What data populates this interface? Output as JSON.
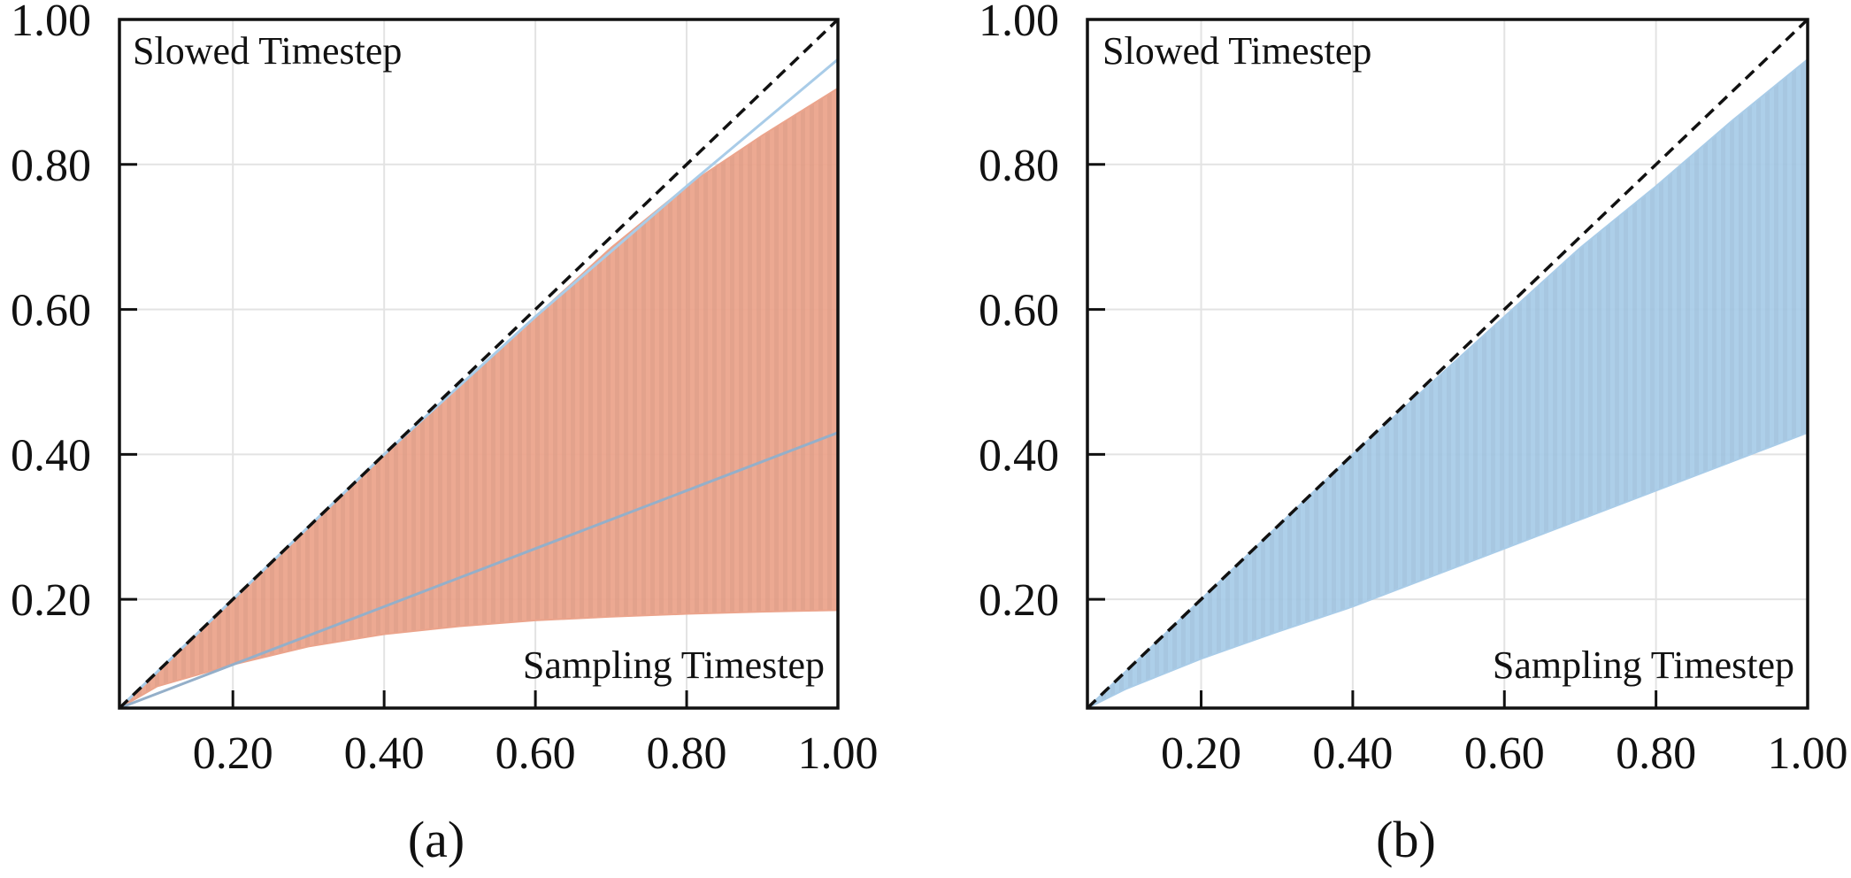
{
  "chart_data": [
    {
      "type": "area",
      "caption": "(a)",
      "xlim": [
        0.05,
        1.0
      ],
      "ylim": [
        0.05,
        1.0
      ],
      "xticks": [
        0.2,
        0.4,
        0.6,
        0.8,
        1.0
      ],
      "yticks": [
        0.2,
        0.4,
        0.6,
        0.8,
        1.0
      ],
      "xtick_labels": [
        "0.20",
        "0.40",
        "0.60",
        "0.80",
        "1.00"
      ],
      "ytick_labels": [
        "0.20",
        "0.40",
        "0.60",
        "0.80",
        "1.00"
      ],
      "grid": true,
      "ylabel": "Slowed Timestep",
      "xlabel": "Sampling Timestep",
      "reference_line": {
        "style": "dashed",
        "color": "#111111",
        "x": [
          0.05,
          1.0
        ],
        "y": [
          0.05,
          1.0
        ]
      },
      "bands": [
        {
          "name": "orange-band",
          "color": "#EBA48C",
          "x": [
            0.05,
            0.1,
            0.2,
            0.3,
            0.4,
            0.5,
            0.6,
            0.7,
            0.8,
            0.9,
            1.0
          ],
          "upper": [
            0.05,
            0.1,
            0.2,
            0.3,
            0.4,
            0.495,
            0.59,
            0.685,
            0.77,
            0.84,
            0.905
          ],
          "lower": [
            0.05,
            0.08,
            0.11,
            0.135,
            0.152,
            0.163,
            0.171,
            0.176,
            0.18,
            0.183,
            0.185
          ]
        }
      ],
      "lines": [
        {
          "name": "blue-upper-line",
          "color": "#A9CCE8",
          "x": [
            0.05,
            0.4,
            0.6,
            0.8,
            1.0
          ],
          "y": [
            0.05,
            0.4,
            0.59,
            0.77,
            0.945
          ]
        },
        {
          "name": "blue-lower-line",
          "color": "#94AFC9",
          "x": [
            0.05,
            0.4,
            0.6,
            0.8,
            1.0
          ],
          "y": [
            0.05,
            0.19,
            0.27,
            0.35,
            0.43
          ]
        }
      ]
    },
    {
      "type": "area",
      "caption": "(b)",
      "xlim": [
        0.05,
        1.0
      ],
      "ylim": [
        0.05,
        1.0
      ],
      "xticks": [
        0.2,
        0.4,
        0.6,
        0.8,
        1.0
      ],
      "yticks": [
        0.2,
        0.4,
        0.6,
        0.8,
        1.0
      ],
      "xtick_labels": [
        "0.20",
        "0.40",
        "0.60",
        "0.80",
        "1.00"
      ],
      "ytick_labels": [
        "0.20",
        "0.40",
        "0.60",
        "0.80",
        "1.00"
      ],
      "grid": true,
      "ylabel": "Slowed Timestep",
      "xlabel": "Sampling Timestep",
      "reference_line": {
        "style": "dashed",
        "color": "#111111",
        "x": [
          0.05,
          1.0
        ],
        "y": [
          0.05,
          1.0
        ]
      },
      "bands": [
        {
          "name": "blue-band",
          "color": "#A9CCE8",
          "x": [
            0.05,
            0.1,
            0.2,
            0.3,
            0.4,
            0.5,
            0.6,
            0.7,
            0.8,
            0.9,
            1.0
          ],
          "upper": [
            0.05,
            0.1,
            0.2,
            0.3,
            0.4,
            0.495,
            0.59,
            0.685,
            0.77,
            0.86,
            0.945
          ],
          "lower": [
            0.05,
            0.076,
            0.118,
            0.155,
            0.19,
            0.23,
            0.27,
            0.31,
            0.35,
            0.39,
            0.43
          ]
        }
      ],
      "lines": []
    }
  ]
}
